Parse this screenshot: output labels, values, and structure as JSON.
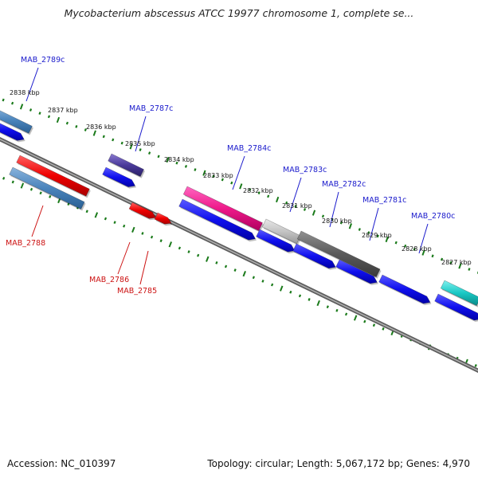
{
  "title": "Mycobacterium abscessus ATCC 19977 chromosome 1, complete se...",
  "footer": {
    "accession": "Accession: NC_010397",
    "summary": "Topology: circular; Length: 5,067,172 bp; Genes: 4,970"
  },
  "colors": {
    "label_minus_strand": "#1a1acc",
    "label_plus_strand": "#cc1111",
    "tick_green": "#1a7a1a",
    "backbone": "#777777"
  },
  "kbp_ticks": [
    {
      "label": "2838 kbp"
    },
    {
      "label": "2837 kbp"
    },
    {
      "label": "2836 kbp"
    },
    {
      "label": "2835 kbp"
    },
    {
      "label": "2834 kbp"
    },
    {
      "label": "2833 kbp"
    },
    {
      "label": "2832 kbp"
    },
    {
      "label": "2831 kbp"
    },
    {
      "label": "2830 kbp"
    },
    {
      "label": "2829 kbp"
    },
    {
      "label": "2828 kbp"
    },
    {
      "label": "2827 kbp"
    }
  ],
  "gene_labels": [
    {
      "name": "MAB_2789c",
      "strand": "minus"
    },
    {
      "name": "MAB_2787c",
      "strand": "minus"
    },
    {
      "name": "MAB_2784c",
      "strand": "minus"
    },
    {
      "name": "MAB_2783c",
      "strand": "minus"
    },
    {
      "name": "MAB_2782c",
      "strand": "minus"
    },
    {
      "name": "MAB_2781c",
      "strand": "minus"
    },
    {
      "name": "MAB_2780c",
      "strand": "minus"
    },
    {
      "name": "MAB_2788",
      "strand": "plus"
    },
    {
      "name": "MAB_2786",
      "strand": "plus"
    },
    {
      "name": "MAB_2785",
      "strand": "plus"
    }
  ]
}
